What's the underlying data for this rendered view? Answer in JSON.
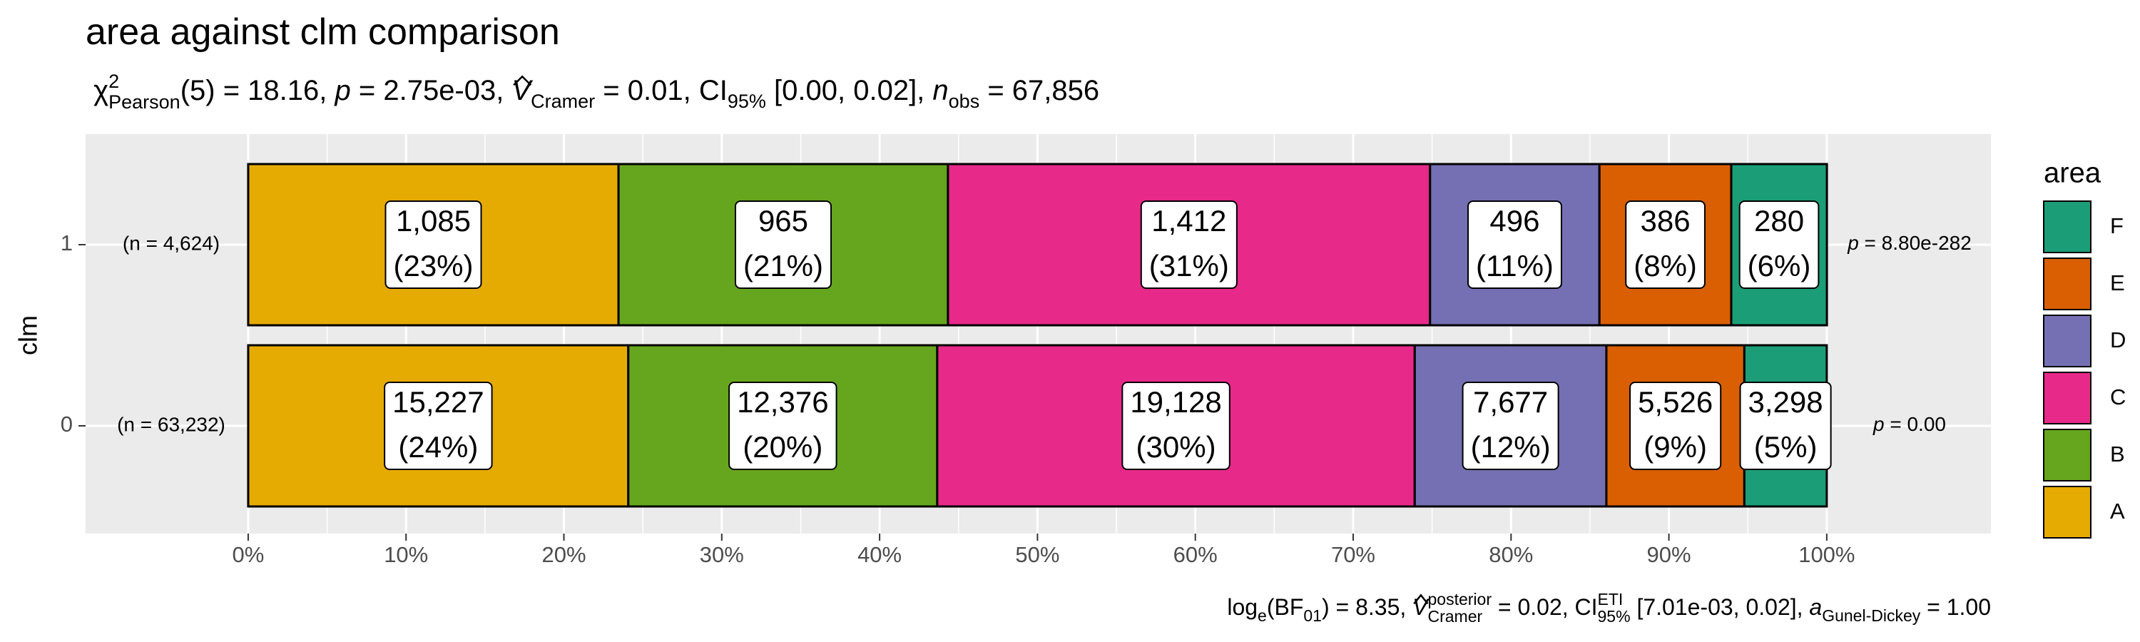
{
  "chart_data": {
    "type": "bar",
    "orientation": "horizontal",
    "title": "area against clm comparison",
    "subtitle": [
      "χ",
      "2",
      "Pearson",
      "(5) = 18.16, ",
      "p",
      " = 2.75e-03, ",
      "V",
      "Cramer",
      " = 0.01, CI",
      "95%",
      " [0.00, 0.02], ",
      "n",
      "obs",
      " = 67,856"
    ],
    "caption": [
      "log",
      "e",
      "(BF",
      "01",
      ") = 8.35, ",
      "V",
      "posterior",
      "Cramer",
      " = 0.02, CI",
      "ETI",
      "95%",
      " [7.01e-03, 0.02], ",
      "a",
      "Gunel-Dickey",
      " = 1.00"
    ],
    "ylabel": "clm",
    "categories": [
      "1",
      "0"
    ],
    "n_labels": [
      "(n = 4,624)",
      "(n = 63,232)"
    ],
    "p_labels": [
      [
        "p",
        " = 8.80e-282"
      ],
      [
        "p",
        " = 0.00"
      ]
    ],
    "legend_title": "area",
    "legend_position": "right",
    "grid": true,
    "xlim": [
      -10.3,
      110.4
    ],
    "xticks": [
      {
        "value": 0,
        "label": "0%"
      },
      {
        "value": 10,
        "label": "10%"
      },
      {
        "value": 20,
        "label": "20%"
      },
      {
        "value": 30,
        "label": "30%"
      },
      {
        "value": 40,
        "label": "40%"
      },
      {
        "value": 50,
        "label": "50%"
      },
      {
        "value": 60,
        "label": "60%"
      },
      {
        "value": 70,
        "label": "70%"
      },
      {
        "value": 80,
        "label": "80%"
      },
      {
        "value": 90,
        "label": "90%"
      },
      {
        "value": 100,
        "label": "100%"
      }
    ],
    "series": [
      {
        "name": "A",
        "color": "#E6AB02",
        "values": [
          23.46,
          24.08
        ],
        "value_labels": [
          "(23%)",
          "(24%)"
        ],
        "count_labels": [
          "1,085",
          "15,227"
        ]
      },
      {
        "name": "B",
        "color": "#66A61E",
        "values": [
          20.87,
          19.57
        ],
        "value_labels": [
          "(21%)",
          "(20%)"
        ],
        "count_labels": [
          "965",
          "12,376"
        ]
      },
      {
        "name": "C",
        "color": "#E7298A",
        "values": [
          30.54,
          30.25
        ],
        "value_labels": [
          "(31%)",
          "(30%)"
        ],
        "count_labels": [
          "1,412",
          "19,128"
        ]
      },
      {
        "name": "D",
        "color": "#7570B3",
        "values": [
          10.73,
          12.14
        ],
        "value_labels": [
          "(11%)",
          "(12%)"
        ],
        "count_labels": [
          "496",
          "7,677"
        ]
      },
      {
        "name": "E",
        "color": "#D95F02",
        "values": [
          8.35,
          8.74
        ],
        "value_labels": [
          "(8%)",
          "(9%)"
        ],
        "count_labels": [
          "386",
          "5,526"
        ]
      },
      {
        "name": "F",
        "color": "#1B9E77",
        "values": [
          6.06,
          5.22
        ],
        "value_labels": [
          "(6%)",
          "(5%)"
        ],
        "count_labels": [
          "280",
          "3,298"
        ]
      }
    ]
  }
}
